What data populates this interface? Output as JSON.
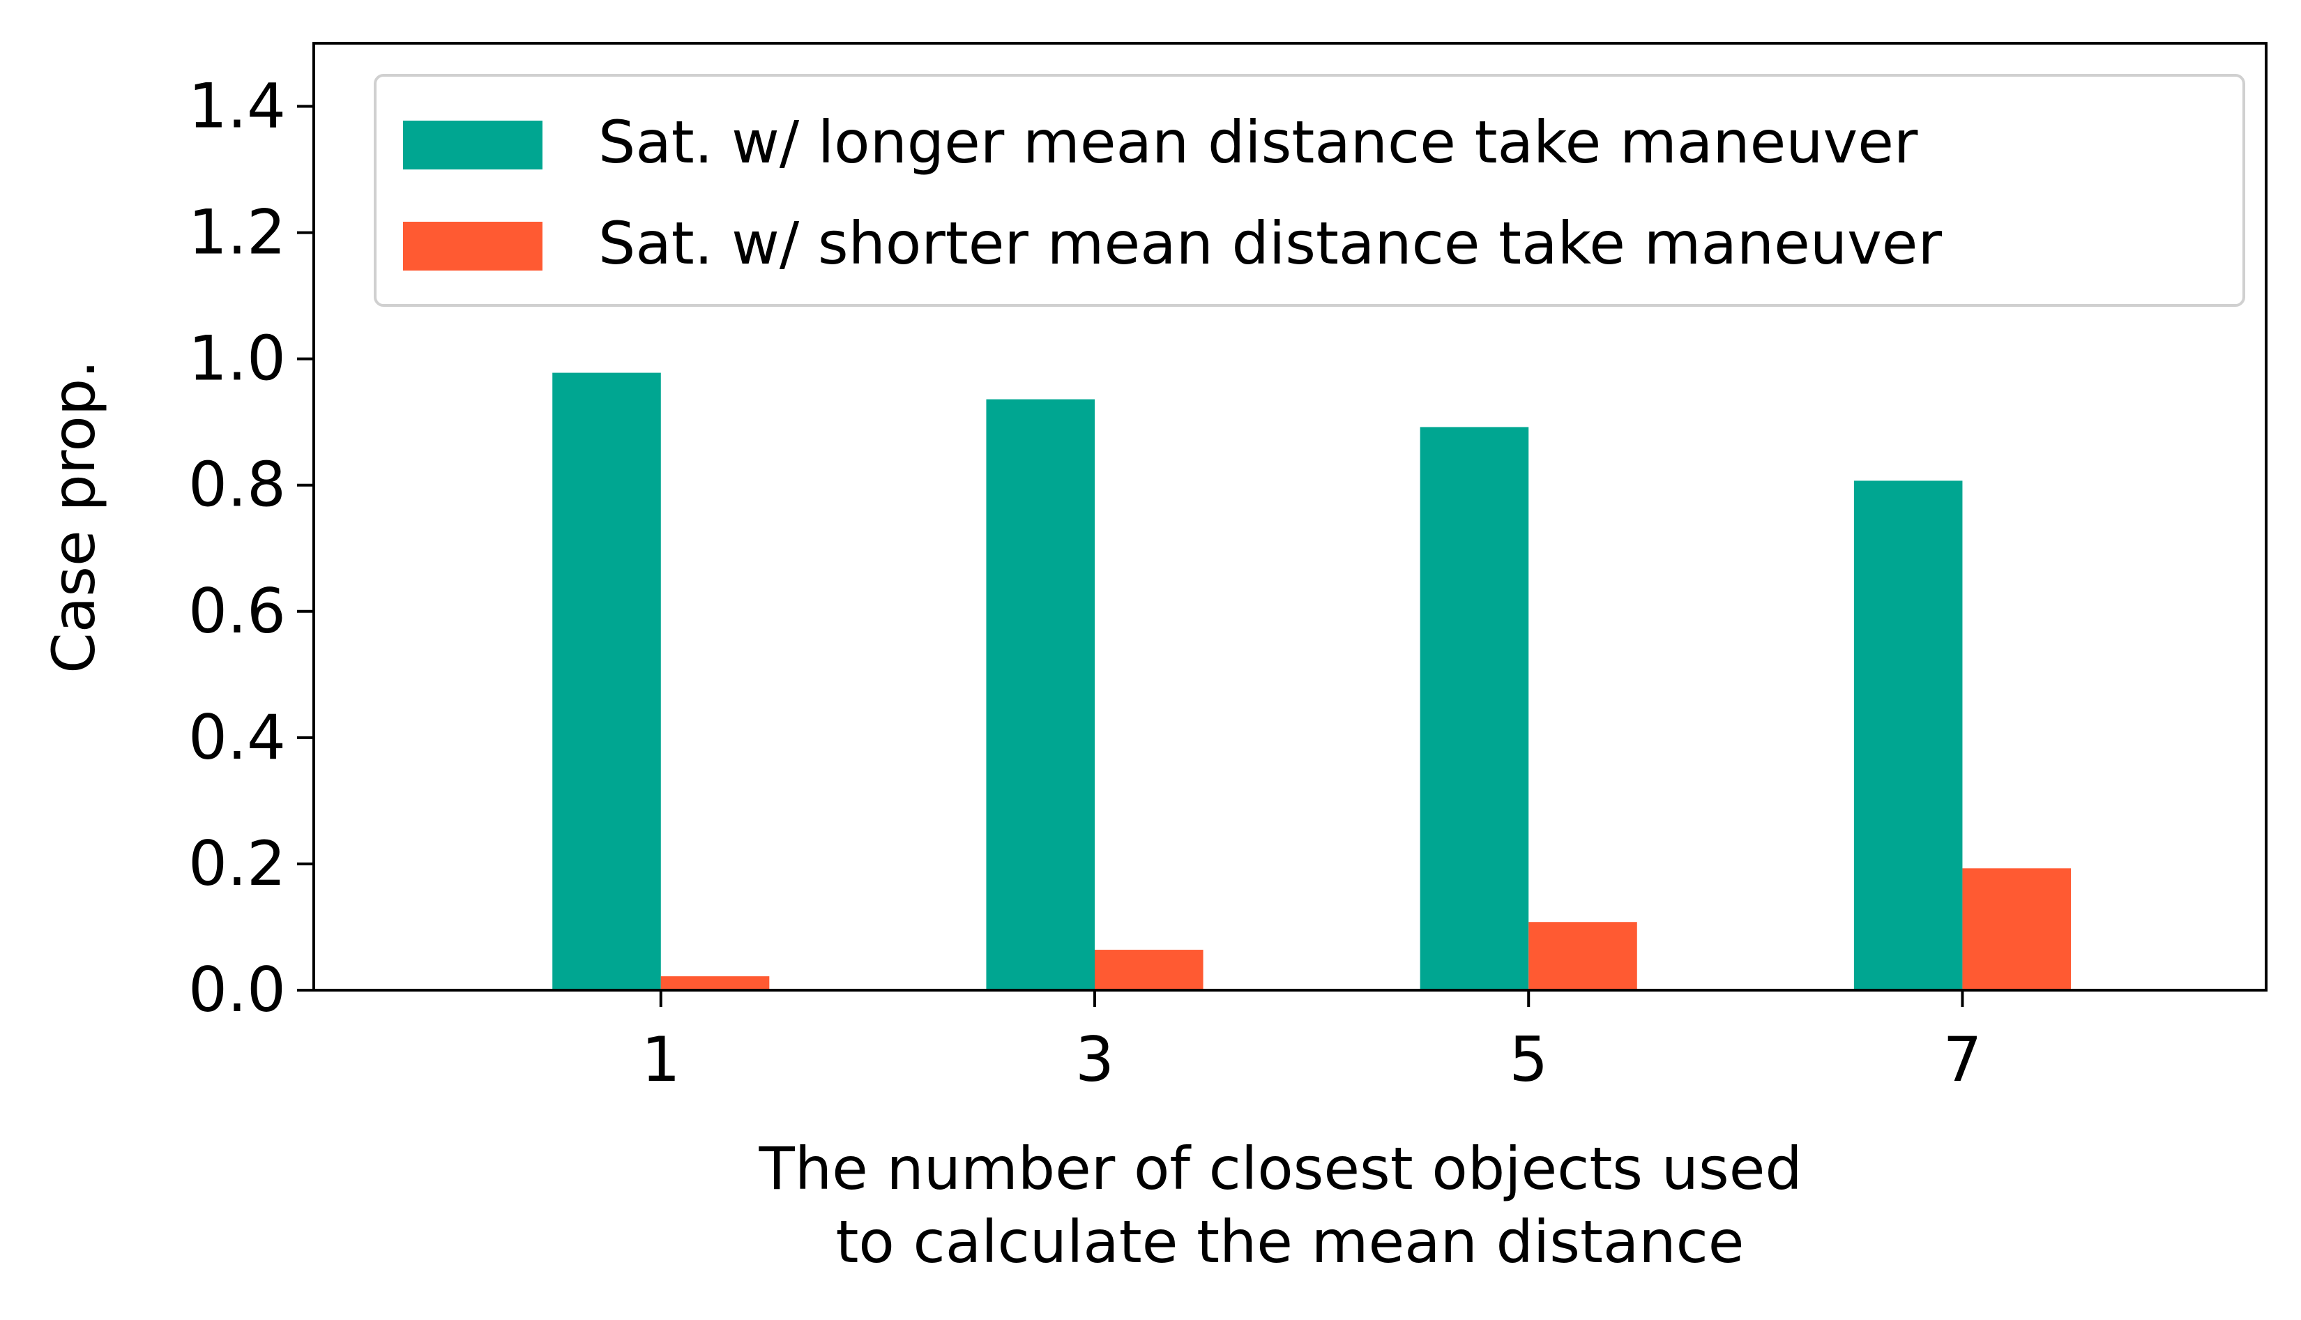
{
  "chart_data": {
    "type": "bar",
    "categories": [
      "1",
      "3",
      "5",
      "7"
    ],
    "series": [
      {
        "name": "Sat. w/ longer mean distance take maneuver",
        "values": [
          0.978,
          0.936,
          0.892,
          0.807
        ],
        "color": "#00A691"
      },
      {
        "name": "Sat. w/ shorter mean distance take maneuver",
        "values": [
          0.022,
          0.064,
          0.108,
          0.193
        ],
        "color": "#FF5A32"
      }
    ],
    "xlabel": [
      "The number of closest objects used",
      "to calculate the mean distance"
    ],
    "ylabel": "Case prop.",
    "ylim": [
      0,
      1.5
    ],
    "yticks": [
      "0.0",
      "0.2",
      "0.4",
      "0.6",
      "0.8",
      "1.0",
      "1.2",
      "1.4"
    ],
    "legend_position": "top-right",
    "grid": false
  }
}
